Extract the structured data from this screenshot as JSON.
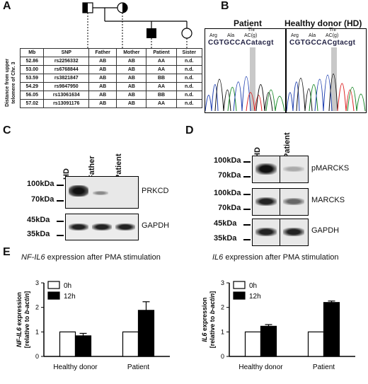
{
  "panels": {
    "A": {
      "letter": "A",
      "side_label": [
        "Distance from upper",
        "telomere of Chr. 3"
      ],
      "table": {
        "columns": [
          "Mb",
          "SNP",
          "Father",
          "Mother",
          "Patient",
          "Sister"
        ],
        "rows": [
          [
            "52.86",
            "rs2256332",
            "AB",
            "AB",
            "AA",
            "n.d."
          ],
          [
            "53.00",
            "rs6768844",
            "AB",
            "AB",
            "AA",
            "n.d."
          ],
          [
            "53.59",
            "rs3821847",
            "AB",
            "AB",
            "BB",
            "n.d."
          ],
          [
            "54.29",
            "rs9847950",
            "AB",
            "AB",
            "AA",
            "n.d."
          ],
          [
            "56.05",
            "rs13061634",
            "AB",
            "AB",
            "BB",
            "n.d."
          ],
          [
            "57.02",
            "rs13091176",
            "AB",
            "AB",
            "AA",
            "n.d."
          ]
        ]
      }
    },
    "B": {
      "letter": "B",
      "patient_title": "Patient",
      "hd_title": "Healthy donor (HD)",
      "aa": [
        "Arg",
        "Ala",
        "Thr"
      ],
      "codon_label": "AC(g)",
      "patient_seq": "CGTGCCACatacgt",
      "hd_seq": "CGTGCCACgtacgt"
    },
    "C": {
      "letter": "C",
      "lanes": [
        "HD",
        "Father",
        "Patient"
      ],
      "markers": [
        "100kDa",
        "70kDa",
        "45kDa",
        "35kDa"
      ],
      "bands": [
        "PRKCD",
        "GAPDH"
      ]
    },
    "D": {
      "letter": "D",
      "lanes": [
        "HD",
        "Patient"
      ],
      "markers": [
        "100kDa",
        "70kDa",
        "100kDa",
        "70kDa",
        "45kDa",
        "35kDa"
      ],
      "bands": [
        "pMARCKS",
        "MARCKS",
        "GAPDH"
      ]
    },
    "E": {
      "letter": "E"
    }
  },
  "chart_data": [
    {
      "type": "bar",
      "title_italic": "NF-IL6",
      "title_rest": " expression after PMA stimulation",
      "ylabel_italic": "NF-IL6",
      "ylabel_rest": " expression",
      "ylabel2_pre": "[relative to ",
      "ylabel2_italic": "b-actin",
      "ylabel2_post": "]",
      "categories": [
        "Healthy donor",
        "Patient"
      ],
      "series": [
        {
          "name": "0h",
          "values": [
            1.0,
            1.0
          ],
          "errors": [
            0,
            0
          ],
          "color": "#ffffff"
        },
        {
          "name": "12h",
          "values": [
            0.84,
            1.88
          ],
          "errors": [
            0.1,
            0.35
          ],
          "color": "#000000"
        }
      ],
      "ylim": [
        0,
        3
      ],
      "yticks": [
        "0",
        "1",
        "2",
        "3"
      ]
    },
    {
      "type": "bar",
      "title_italic": "IL6",
      "title_rest": " expression after PMA stimulation",
      "ylabel_italic": "IL6",
      "ylabel_rest": " expression",
      "ylabel2_pre": "[relative to ",
      "ylabel2_italic": "b-actin",
      "ylabel2_post": "]",
      "categories": [
        "Healthy donor",
        "Patient"
      ],
      "series": [
        {
          "name": "0h",
          "values": [
            1.0,
            1.0
          ],
          "errors": [
            0,
            0
          ],
          "color": "#ffffff"
        },
        {
          "name": "12h",
          "values": [
            1.23,
            2.2
          ],
          "errors": [
            0.07,
            0.06
          ],
          "color": "#000000"
        }
      ],
      "ylim": [
        0,
        3
      ],
      "yticks": [
        "0",
        "1",
        "2",
        "3"
      ]
    }
  ]
}
